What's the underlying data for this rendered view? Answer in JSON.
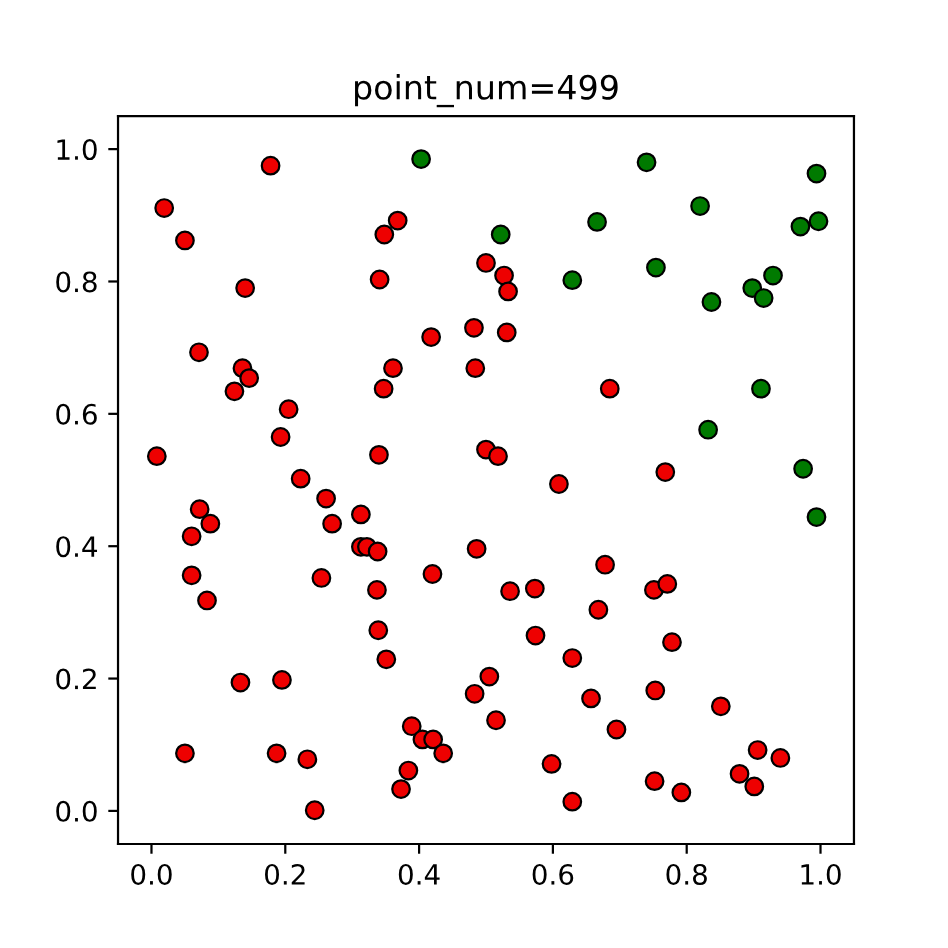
{
  "chart_data": {
    "type": "scatter",
    "title": "point_num=499",
    "xlim": [
      -0.05,
      1.05
    ],
    "ylim": [
      -0.05,
      1.05
    ],
    "xticks": [
      {
        "value": 0,
        "label": "0.0"
      },
      0.2,
      0.4,
      0.6,
      0.8,
      {
        "value": 1,
        "label": "1.0"
      }
    ],
    "yticks": [
      {
        "value": 0,
        "label": "0.0"
      },
      0.2,
      0.4,
      0.6,
      0.8,
      {
        "value": 1,
        "label": "1.0"
      }
    ],
    "marker": "circle",
    "grid": false,
    "legend": false,
    "series": [
      {
        "color": "#ee0000",
        "x": [
          0.008,
          0.019,
          0.05,
          0.178,
          0.14,
          0.071,
          0.136,
          0.146,
          0.124,
          0.205,
          0.193,
          0.223,
          0.34,
          0.348,
          0.368,
          0.341,
          0.418,
          0.361,
          0.347,
          0.482,
          0.484,
          0.5,
          0.527,
          0.533,
          0.531,
          0.685,
          0.5,
          0.518,
          0.609,
          0.768,
          0.486,
          0.678,
          0.536,
          0.573,
          0.751,
          0.771,
          0.668,
          0.574,
          0.778,
          0.629,
          0.505,
          0.483,
          0.657,
          0.753,
          0.851,
          0.515,
          0.695,
          0.906,
          0.94,
          0.598,
          0.879,
          0.752,
          0.901,
          0.792,
          0.629,
          0.072,
          0.06,
          0.088,
          0.06,
          0.083,
          0.133,
          0.195,
          0.05,
          0.187,
          0.233,
          0.244,
          0.261,
          0.27,
          0.313,
          0.313,
          0.322,
          0.338,
          0.254,
          0.337,
          0.339,
          0.351,
          0.42,
          0.389,
          0.405,
          0.421,
          0.436,
          0.384,
          0.373
        ],
        "values": [
          0.536,
          0.911,
          0.862,
          0.975,
          0.79,
          0.693,
          0.669,
          0.654,
          0.634,
          0.607,
          0.565,
          0.502,
          0.538,
          0.871,
          0.892,
          0.803,
          0.716,
          0.669,
          0.638,
          0.73,
          0.669,
          0.828,
          0.809,
          0.785,
          0.723,
          0.638,
          0.546,
          0.536,
          0.494,
          0.512,
          0.396,
          0.372,
          0.332,
          0.336,
          0.334,
          0.343,
          0.304,
          0.265,
          0.255,
          0.231,
          0.203,
          0.177,
          0.17,
          0.182,
          0.158,
          0.137,
          0.123,
          0.092,
          0.08,
          0.071,
          0.056,
          0.045,
          0.037,
          0.028,
          0.014,
          0.456,
          0.415,
          0.434,
          0.356,
          0.318,
          0.194,
          0.198,
          0.087,
          0.087,
          0.078,
          0.001,
          0.472,
          0.434,
          0.448,
          0.399,
          0.399,
          0.392,
          0.352,
          0.334,
          0.273,
          0.229,
          0.358,
          0.128,
          0.108,
          0.108,
          0.087,
          0.061,
          0.033
        ]
      },
      {
        "color": "#007a00",
        "x": [
          0.403,
          0.74,
          0.994,
          0.82,
          0.666,
          0.97,
          0.997,
          0.522,
          0.629,
          0.754,
          0.929,
          0.898,
          0.915,
          0.837,
          0.911,
          0.832,
          0.974,
          0.994
        ],
        "values": [
          0.985,
          0.98,
          0.963,
          0.914,
          0.89,
          0.883,
          0.891,
          0.871,
          0.802,
          0.821,
          0.809,
          0.79,
          0.775,
          0.769,
          0.638,
          0.576,
          0.517,
          0.444
        ]
      }
    ]
  }
}
